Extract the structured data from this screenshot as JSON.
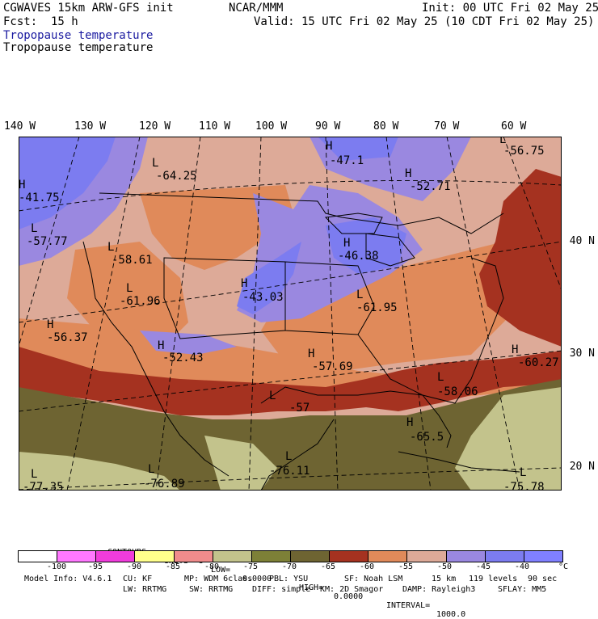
{
  "header": {
    "model": "CGWAVES 15km ARW-GFS init",
    "org": "NCAR/MMM",
    "init": "Init: 00 UTC Fri 02 May 25",
    "fcst_label": "Fcst:",
    "fcst_value": "15 h",
    "valid": "Valid: 15 UTC Fri 02 May 25 (10 CDT Fri 02 May 25)",
    "field_title": "Tropopause temperature",
    "field_subtitle": "Tropopause temperature"
  },
  "longitude_labels": [
    "140 W",
    "130 W",
    "120 W",
    "110 W",
    "100 W",
    "90 W",
    "80 W",
    "70 W",
    "60 W"
  ],
  "latitude_labels": [
    "40 N",
    "30 N",
    "20 N"
  ],
  "extrema": [
    {
      "type": "H",
      "value": "-47.1"
    },
    {
      "type": "L",
      "value": "-56.75"
    },
    {
      "type": "L",
      "value": "-64.25"
    },
    {
      "type": "H",
      "value": "-41.75"
    },
    {
      "type": "H",
      "value": "-52.71"
    },
    {
      "type": "L",
      "value": "-57.77"
    },
    {
      "type": "L",
      "value": "-58.61"
    },
    {
      "type": "H",
      "value": "-46.38"
    },
    {
      "type": "L",
      "value": "-61.96"
    },
    {
      "type": "H",
      "value": "-43.03"
    },
    {
      "type": "L",
      "value": "-61.95"
    },
    {
      "type": "H",
      "value": "-56.37"
    },
    {
      "type": "H",
      "value": "-52.43"
    },
    {
      "type": "H",
      "value": "-57.69"
    },
    {
      "type": "H",
      "value": "-60.27"
    },
    {
      "type": "L",
      "value": "-58.06"
    },
    {
      "type": "L",
      "value": "-57"
    },
    {
      "type": "H",
      "value": "-65.5"
    },
    {
      "type": "L",
      "value": "-76.11"
    },
    {
      "type": "L",
      "value": "-76.89"
    },
    {
      "type": "L",
      "value": "-77.35"
    },
    {
      "type": "L",
      "value": "-75.78"
    }
  ],
  "contour_info": {
    "contours": "CONTOURS:",
    "units": "UNITS=°C",
    "low": "LOW=",
    "low_value": "0.0000",
    "high": "HIGH=",
    "high_value": "0.0000",
    "interval": "INTERVAL=",
    "interval_value": "1000.0"
  },
  "color_scale": {
    "colors": [
      "#ffffff",
      "#ff78ff",
      "#f03cdc",
      "#ffff8c",
      "#f08c8c",
      "#c3c38c",
      "#7d8037",
      "#6e6432",
      "#a53220",
      "#e08a5a",
      "#ddaa98",
      "#9a88e0",
      "#7c7cf0",
      "#8080ff"
    ],
    "ticks": [
      "-100",
      "-95",
      "-90",
      "-85",
      "-80",
      "-75",
      "-70",
      "-65",
      "-60",
      "-55",
      "-50",
      "-45",
      "-40"
    ],
    "unit": "°C"
  },
  "model_info": {
    "line1": [
      "Model Info: V4.6.1",
      "CU: KF",
      "MP: WDM 6class",
      "PBL: YSU",
      "SF: Noah LSM",
      "15 km",
      "119 levels",
      "90 sec"
    ],
    "line2": [
      "LW: RRTMG",
      "SW: RRTMG",
      "DIFF: simple",
      "KM: 2D Smagor",
      "DAMP: Rayleigh3",
      "SFLAY: MM5"
    ]
  }
}
